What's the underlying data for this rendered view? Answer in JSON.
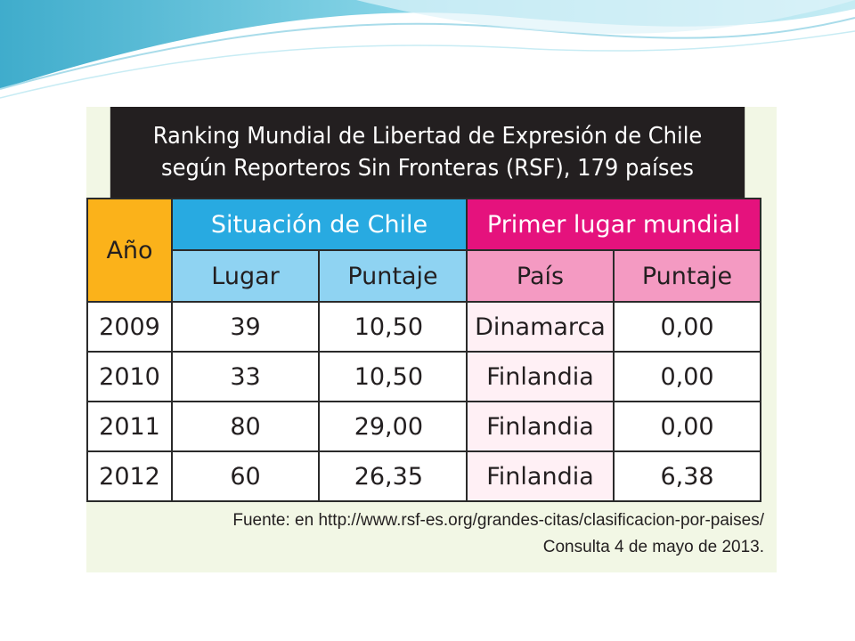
{
  "title": {
    "line1": "Ranking Mundial de Libertad de Expresión de Chile",
    "line2": "según Reporteros Sin Fronteras (RSF), 179 países"
  },
  "headers": {
    "year": "Año",
    "chile_group": "Situación de Chile",
    "world_group": "Primer lugar mundial",
    "lugar": "Lugar",
    "puntaje_chile": "Puntaje",
    "pais": "País",
    "puntaje_world": "Puntaje"
  },
  "rows": [
    {
      "year": "2009",
      "lugar": "39",
      "puntaje": "10,50",
      "pais": "Dinamarca",
      "puntaje_world": "0,00"
    },
    {
      "year": "2010",
      "lugar": "33",
      "puntaje": "10,50",
      "pais": "Finlandia",
      "puntaje_world": "0,00"
    },
    {
      "year": "2011",
      "lugar": "80",
      "puntaje": "29,00",
      "pais": "Finlandia",
      "puntaje_world": "0,00"
    },
    {
      "year": "2012",
      "lugar": "60",
      "puntaje": "26,35",
      "pais": "Finlandia",
      "puntaje_world": "6,38"
    }
  ],
  "source": {
    "line1": "Fuente: en http://www.rsf-es.org/grandes-citas/clasificacion-por-paises/",
    "line2": "Consulta 4 de mayo de 2013."
  },
  "colors": {
    "title_bg": "#231f20",
    "year_header": "#fbb21a",
    "chile_header": "#28aae1",
    "chile_subheader": "#8fd3f2",
    "world_header": "#e5127d",
    "world_subheader": "#f49ac2",
    "card_bg": "#f2f7e5"
  }
}
